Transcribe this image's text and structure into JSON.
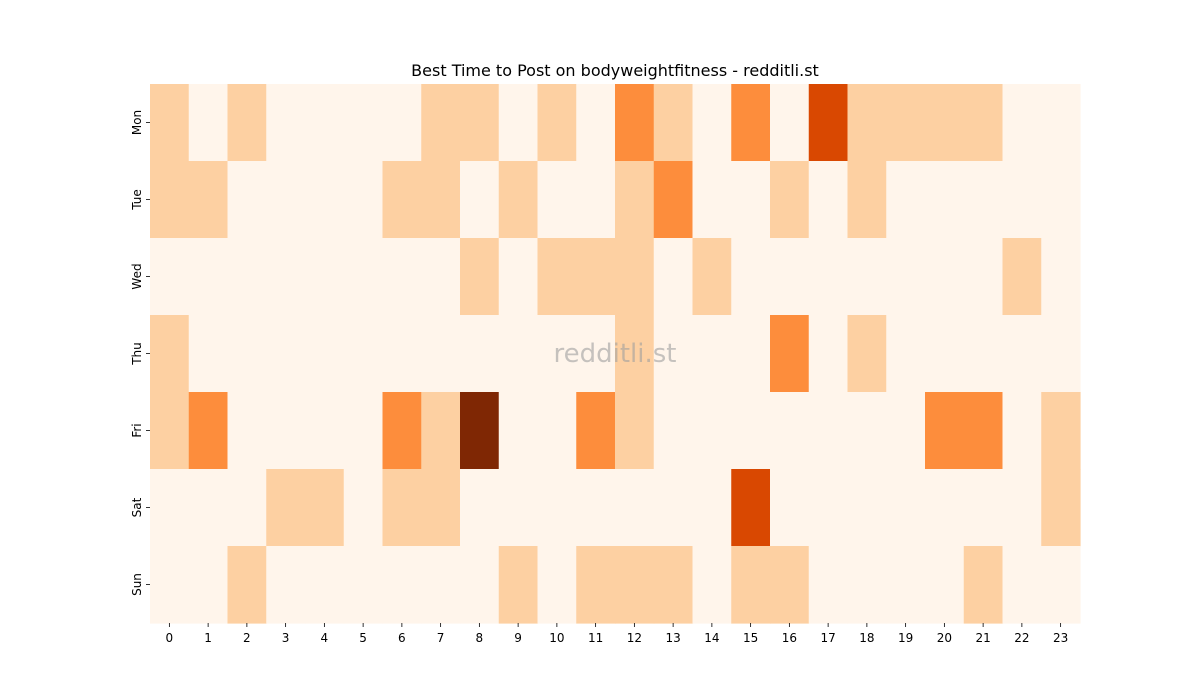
{
  "chart_data": {
    "type": "heatmap",
    "title": "Best Time to Post on bodyweightfitness - redditli.st",
    "watermark": "redditli.st",
    "xlabel": "",
    "ylabel": "",
    "x": [
      "0",
      "1",
      "2",
      "3",
      "4",
      "5",
      "6",
      "7",
      "8",
      "9",
      "10",
      "11",
      "12",
      "13",
      "14",
      "15",
      "16",
      "17",
      "18",
      "19",
      "20",
      "21",
      "22",
      "23"
    ],
    "y": [
      "Mon",
      "Tue",
      "Wed",
      "Thu",
      "Fri",
      "Sat",
      "Sun"
    ],
    "values": [
      [
        1,
        0,
        1,
        0,
        0,
        0,
        0,
        1,
        1,
        0,
        1,
        0,
        2,
        1,
        0,
        2,
        0,
        3,
        1,
        1,
        1,
        1,
        0,
        0
      ],
      [
        1,
        1,
        0,
        0,
        0,
        0,
        1,
        1,
        0,
        1,
        0,
        0,
        1,
        2,
        0,
        0,
        1,
        0,
        1,
        0,
        0,
        0,
        0,
        0
      ],
      [
        0,
        0,
        0,
        0,
        0,
        0,
        0,
        0,
        1,
        0,
        1,
        1,
        1,
        0,
        1,
        0,
        0,
        0,
        0,
        0,
        0,
        0,
        1,
        0
      ],
      [
        1,
        0,
        0,
        0,
        0,
        0,
        0,
        0,
        0,
        0,
        0,
        0,
        1,
        0,
        0,
        0,
        2,
        0,
        1,
        0,
        0,
        0,
        0,
        0
      ],
      [
        1,
        2,
        0,
        0,
        0,
        0,
        2,
        1,
        4,
        0,
        0,
        2,
        1,
        0,
        0,
        0,
        0,
        0,
        0,
        0,
        2,
        2,
        0,
        1
      ],
      [
        0,
        0,
        0,
        1,
        1,
        0,
        1,
        1,
        0,
        0,
        0,
        0,
        0,
        0,
        0,
        3,
        0,
        0,
        0,
        0,
        0,
        0,
        0,
        1
      ],
      [
        0,
        0,
        1,
        0,
        0,
        0,
        0,
        0,
        0,
        1,
        0,
        1,
        1,
        1,
        0,
        1,
        1,
        0,
        0,
        0,
        0,
        1,
        0,
        0
      ]
    ],
    "color_scale": [
      "#fff5eb",
      "#fdd0a2",
      "#fd8d3c",
      "#d94801",
      "#7f2704"
    ],
    "colorbar": false,
    "grid": false
  }
}
